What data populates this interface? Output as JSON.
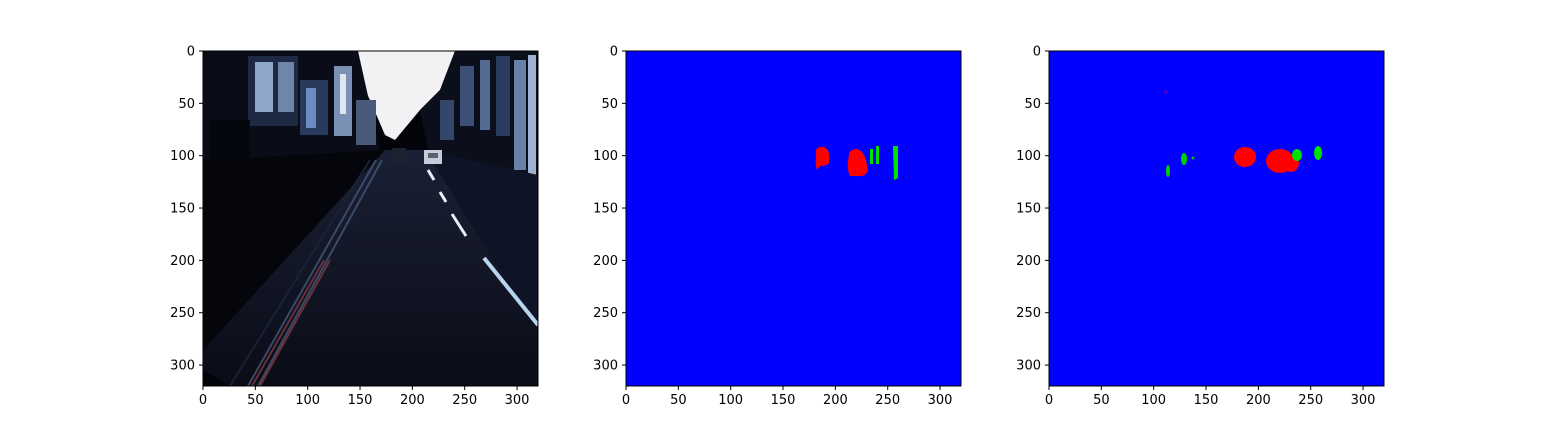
{
  "figure": {
    "panels": [
      {
        "name": "input-image",
        "content": "street scene photo (dark, contrast-normalized road view with buildings and cars)",
        "x_ticks": [
          "0",
          "50",
          "100",
          "150",
          "200",
          "250",
          "300"
        ],
        "y_ticks": [
          "0",
          "50",
          "100",
          "150",
          "200",
          "250",
          "300"
        ]
      },
      {
        "name": "ground-truth-mask",
        "content": "segmentation mask: blue background, red and green object blobs",
        "x_ticks": [
          "0",
          "50",
          "100",
          "150",
          "200",
          "250",
          "300"
        ],
        "y_ticks": [
          "0",
          "50",
          "100",
          "150",
          "200",
          "250",
          "300"
        ]
      },
      {
        "name": "predicted-mask",
        "content": "segmentation mask: blue background, red and green object blobs",
        "x_ticks": [
          "0",
          "50",
          "100",
          "150",
          "200",
          "250",
          "300"
        ],
        "y_ticks": [
          "0",
          "50",
          "100",
          "150",
          "200",
          "250",
          "300"
        ]
      }
    ],
    "colors": {
      "background_class": "#0000ff",
      "class_red": "#ff0000",
      "class_green": "#00e000",
      "road_dark": "#0b0d1a",
      "sky": "#f4f4f6"
    }
  }
}
